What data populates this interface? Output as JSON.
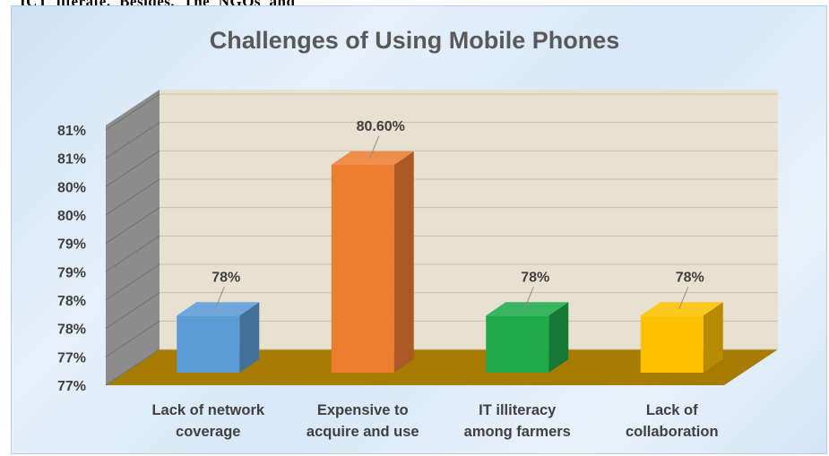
{
  "page": {
    "top_text": "ICT  literate.  Besides,  The  NGOs  and"
  },
  "chart_data": {
    "type": "bar",
    "title": "Challenges of Using Mobile Phones",
    "categories": [
      "Lack of network\ncoverage",
      "Expensive to\nacquire and use",
      "IT illiteracy\namong farmers",
      "Lack of\ncollaboration"
    ],
    "values": [
      78.0,
      80.6,
      78.0,
      78.0
    ],
    "data_labels": [
      "78%",
      "80.60%",
      "78%",
      "78%"
    ],
    "y_ticks": [
      "77%",
      "77%",
      "78%",
      "78%",
      "79%",
      "79%",
      "80%",
      "80%",
      "81%",
      "81%"
    ],
    "ylim": [
      76.8,
      81.2
    ],
    "grid": true,
    "style": "3d-column",
    "colors": {
      "bars": [
        "#5b9bd5",
        "#ed7d31",
        "#1faa4a",
        "#ffc000"
      ],
      "floor": "#a67c00",
      "wall": "#e8e0d0",
      "side_wall": "#8c8c8c"
    }
  }
}
